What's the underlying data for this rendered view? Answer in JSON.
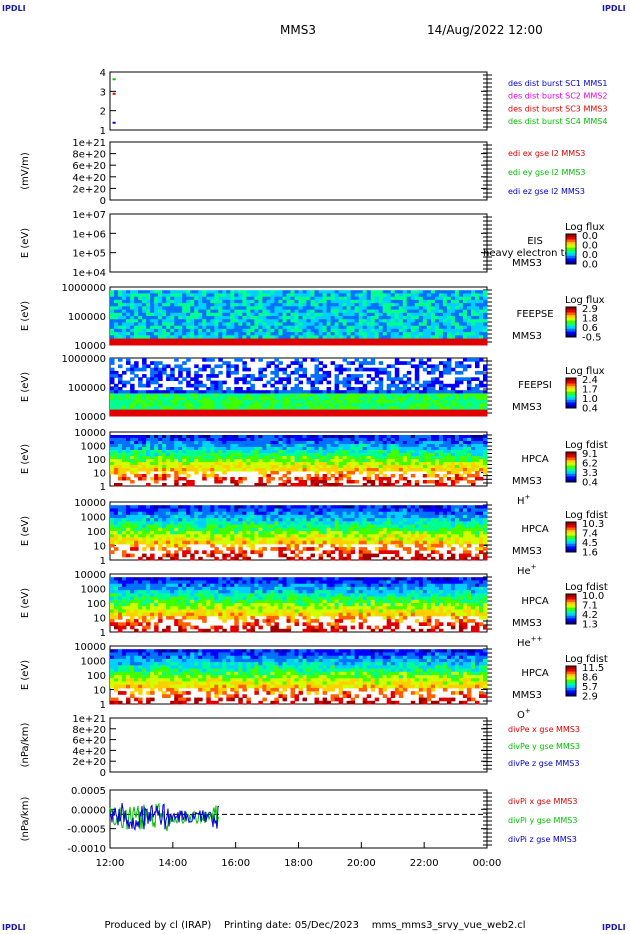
{
  "corners": {
    "tl": "IPDLI",
    "tr": "IPDLI",
    "bl": "IPDLI",
    "br": "IPDLI"
  },
  "header": {
    "spacecraft": "MMS3",
    "datetime": "14/Aug/2022 12:00"
  },
  "footer": {
    "produced": "Produced by cl (IRAP)",
    "printing": "Printing date: 05/Dec/2023",
    "script": "mms_mms3_srvy_vue_web2.cl"
  },
  "colors": {
    "blue": "#0000d0",
    "magenta": "#e000e0",
    "red": "#e00000",
    "green": "#00c000",
    "green2": "#00b000"
  },
  "colormap": [
    "#00008b",
    "#0000ff",
    "#0070ff",
    "#00d0ff",
    "#00ff90",
    "#40ff00",
    "#d0ff00",
    "#ffd000",
    "#ff6000",
    "#e00000",
    "#a00000"
  ],
  "chart_data": {
    "type": "multi-panel",
    "x_ticks": [
      "12:00",
      "14:00",
      "16:00",
      "18:00",
      "20:00",
      "22:00",
      "00:00"
    ],
    "x_range": [
      "12:00",
      "00:00"
    ],
    "panels": [
      {
        "id": "des_dist",
        "type": "scatter",
        "y_ticks": [
          "4",
          "3",
          "2",
          "1"
        ],
        "ylim": [
          0.5,
          4.5
        ],
        "legend": [
          {
            "text": "des dist burst SC1 MMS1",
            "color": "blue"
          },
          {
            "text": "des dist burst SC2 MMS2",
            "color": "magenta"
          },
          {
            "text": "des dist burst SC3 MMS3",
            "color": "red"
          },
          {
            "text": "des dist burst SC4 MMS4",
            "color": "green"
          }
        ],
        "points": [
          {
            "x": "12:05",
            "y": 4,
            "color": "green"
          },
          {
            "x": "12:05",
            "y": 3,
            "color": "red"
          },
          {
            "x": "12:05",
            "y": 1,
            "color": "blue"
          }
        ]
      },
      {
        "id": "edi",
        "type": "line",
        "ylabel": "(mV/m)",
        "y_ticks": [
          "1e+21",
          "8e+20",
          "6e+20",
          "4e+20",
          "2e+20",
          "0"
        ],
        "ylim": [
          0,
          1e+21
        ],
        "zero_line": true,
        "legend": [
          {
            "text": "edi ex gse l2 MMS3",
            "color": "red"
          },
          {
            "text": "edi ey gse l2 MMS3",
            "color": "green"
          },
          {
            "text": "edi ez gse l2 MMS3",
            "color": "blue"
          }
        ]
      },
      {
        "id": "eis",
        "type": "heatmap",
        "ylabel": "E (eV)",
        "y_ticks": [
          "1e+07",
          "1e+06",
          "1e+05",
          "1e+04"
        ],
        "label_lines": [
          "EIS",
          "MMS3"
        ],
        "overlay_text": "heavy electron to",
        "cbar_title": "Log flux",
        "cbar_ticks": [
          "0.0",
          "0.0",
          "0.0",
          "0.0"
        ]
      },
      {
        "id": "feepse",
        "type": "heatmap",
        "ylabel": "E (eV)",
        "y_ticks": [
          "1000000",
          "100000",
          "10000"
        ],
        "label_lines": [
          "FEEPSE",
          "MMS3"
        ],
        "cbar_title": "Log flux",
        "cbar_ticks": [
          "2.9",
          "1.8",
          "0.6",
          "-0.5"
        ]
      },
      {
        "id": "feepsi",
        "type": "heatmap",
        "ylabel": "E (eV)",
        "y_ticks": [
          "1000000",
          "100000",
          "10000"
        ],
        "label_lines": [
          "FEEPSI",
          "MMS3"
        ],
        "cbar_title": "Log flux",
        "cbar_ticks": [
          "2.4",
          "1.7",
          "1.0",
          "0.4"
        ]
      },
      {
        "id": "hpca_h",
        "type": "heatmap",
        "ylabel": "E (eV)",
        "y_ticks": [
          "10000",
          "1000",
          "100",
          "10",
          "1"
        ],
        "label_lines": [
          "HPCA",
          "MMS3"
        ],
        "species": "H",
        "species_sup": "+",
        "cbar_title": "Log fdist",
        "cbar_ticks": [
          "9.1",
          "6.2",
          "3.3",
          "0.4"
        ]
      },
      {
        "id": "hpca_he",
        "type": "heatmap",
        "ylabel": "E (eV)",
        "y_ticks": [
          "10000",
          "1000",
          "100",
          "10",
          "1"
        ],
        "label_lines": [
          "HPCA",
          "MMS3"
        ],
        "species": "He",
        "species_sup": "+",
        "cbar_title": "Log fdist",
        "cbar_ticks": [
          "10.3",
          "7.4",
          "4.5",
          "1.6"
        ]
      },
      {
        "id": "hpca_hepp",
        "type": "heatmap",
        "ylabel": "E (eV)",
        "y_ticks": [
          "10000",
          "1000",
          "100",
          "10",
          "1"
        ],
        "label_lines": [
          "HPCA",
          "MMS3"
        ],
        "species": "He",
        "species_sup": "++",
        "cbar_title": "Log fdist",
        "cbar_ticks": [
          "10.0",
          "7.1",
          "4.2",
          "1.3"
        ]
      },
      {
        "id": "hpca_o",
        "type": "heatmap",
        "ylabel": "E (eV)",
        "y_ticks": [
          "10000",
          "1000",
          "100",
          "10",
          "1"
        ],
        "label_lines": [
          "HPCA",
          "MMS3"
        ],
        "species": "O",
        "species_sup": "+",
        "cbar_title": "Log fdist",
        "cbar_ticks": [
          "11.5",
          "8.6",
          "5.7",
          "2.9"
        ]
      },
      {
        "id": "divpe",
        "type": "line",
        "ylabel": "(nPa/km)",
        "y_ticks": [
          "1e+21",
          "8e+20",
          "6e+20",
          "4e+20",
          "2e+20",
          "0"
        ],
        "ylim": [
          0,
          1e+21
        ],
        "zero_line": true,
        "legend": [
          {
            "text": "divPe x gse MMS3",
            "color": "red"
          },
          {
            "text": "divPe y gse MMS3",
            "color": "green"
          },
          {
            "text": "divPe z gse MMS3",
            "color": "blue"
          }
        ]
      },
      {
        "id": "divpi",
        "type": "line",
        "ylabel": "(nPa/km)",
        "y_ticks": [
          "0.0005",
          "0.0000",
          "-0.0005",
          "-0.0010"
        ],
        "ylim": [
          -0.0011,
          0.0008
        ],
        "zero_line": true,
        "data_end": "15:30",
        "legend": [
          {
            "text": "divPi x gse MMS3",
            "color": "red"
          },
          {
            "text": "divPi y gse MMS3",
            "color": "green"
          },
          {
            "text": "divPi z gse MMS3",
            "color": "blue"
          }
        ]
      }
    ]
  }
}
